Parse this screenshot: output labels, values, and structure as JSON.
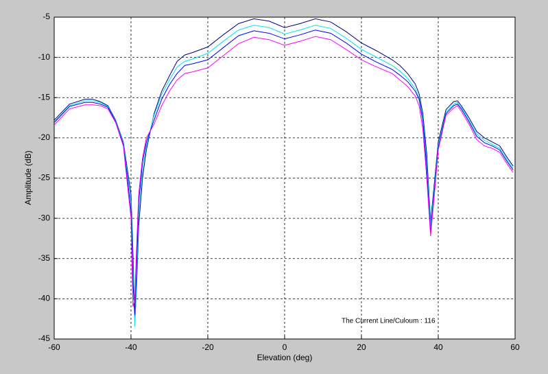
{
  "chart_data": {
    "type": "line",
    "xlabel": "Elevation (deg)",
    "ylabel": "Amplitude (dB)",
    "annotation": "The Current Line/Culoum : 116",
    "xlim": [
      -60,
      60
    ],
    "ylim": [
      -45,
      -5
    ],
    "xticks": [
      -60,
      -40,
      -20,
      0,
      20,
      40,
      60
    ],
    "yticks": [
      -45,
      -40,
      -35,
      -30,
      -25,
      -20,
      -15,
      -10,
      -5
    ],
    "grid": true,
    "x": [
      -60,
      -56,
      -52,
      -50,
      -48,
      -46,
      -44,
      -42,
      -40,
      -39.5,
      -39,
      -38.5,
      -38,
      -37,
      -36,
      -34,
      -32,
      -30,
      -28,
      -26,
      -24,
      -20,
      -16,
      -12,
      -8,
      -4,
      0,
      4,
      8,
      12,
      16,
      20,
      24,
      28,
      30,
      32,
      34,
      35,
      36,
      37,
      38,
      39,
      40,
      42,
      44,
      45,
      46,
      48,
      50,
      52,
      54,
      56,
      58,
      59.5
    ],
    "series": [
      {
        "color": "#000080",
        "values": [
          -17.8,
          -15.8,
          -15.2,
          -15.2,
          -15.5,
          -16,
          -17.8,
          -20.5,
          -27,
          -34,
          -43,
          -38,
          -31,
          -25,
          -21.5,
          -17,
          -14.2,
          -12.3,
          -10.5,
          -9.7,
          -9.4,
          -8.7,
          -7.2,
          -5.8,
          -5.2,
          -5.5,
          -6.3,
          -5.8,
          -5.2,
          -5.6,
          -6.8,
          -8.2,
          -9.2,
          -10.3,
          -11,
          -12,
          -13.3,
          -14.5,
          -17,
          -22,
          -30.5,
          -25.5,
          -20.5,
          -16.5,
          -15.5,
          -15.4,
          -16,
          -17.5,
          -19.2,
          -20,
          -20.5,
          -21,
          -22.5,
          -23.5
        ]
      },
      {
        "color": "#00e5e5",
        "values": [
          -18,
          -16,
          -15.4,
          -15.4,
          -15.6,
          -16.1,
          -17.9,
          -20.6,
          -28,
          -36,
          -43.5,
          -37,
          -29.5,
          -24,
          -21,
          -17.2,
          -14.6,
          -12.8,
          -11.2,
          -10.5,
          -10.2,
          -9.5,
          -8,
          -6.6,
          -6,
          -6.3,
          -7.1,
          -6.6,
          -6,
          -6.4,
          -7.6,
          -9,
          -10,
          -11,
          -11.7,
          -12.6,
          -13.9,
          -15,
          -17.5,
          -23,
          -31,
          -26,
          -21,
          -16.8,
          -15.8,
          -15.6,
          -16.2,
          -17.8,
          -19.5,
          -20.3,
          -20.8,
          -21.3,
          -22.8,
          -23.8
        ]
      },
      {
        "color": "#0000ff",
        "values": [
          -18.1,
          -16.1,
          -15.6,
          -15.6,
          -15.8,
          -16.2,
          -18,
          -20.8,
          -29,
          -38,
          -42,
          -35,
          -28,
          -23,
          -20.5,
          -17.8,
          -15.2,
          -13.4,
          -12,
          -11,
          -10.8,
          -10.3,
          -8.8,
          -7.3,
          -6.7,
          -7,
          -7.7,
          -7.2,
          -6.6,
          -7,
          -8.2,
          -9.6,
          -10.6,
          -11.5,
          -12.2,
          -13,
          -14.2,
          -15.2,
          -18,
          -24,
          -31.8,
          -26.5,
          -21.3,
          -17,
          -16,
          -15.8,
          -16.4,
          -18,
          -19.8,
          -20.6,
          -21,
          -21.5,
          -23,
          -24
        ]
      },
      {
        "color": "#ff00ff",
        "values": [
          -18.4,
          -16.4,
          -15.9,
          -15.9,
          -16,
          -16.4,
          -18.1,
          -21,
          -30,
          -41,
          -40,
          -33,
          -27,
          -22.5,
          -20,
          -18.3,
          -16,
          -14.2,
          -12.8,
          -12,
          -11.8,
          -11.3,
          -9.8,
          -8.3,
          -7.5,
          -7.8,
          -8.5,
          -8,
          -7.4,
          -7.8,
          -9,
          -10.3,
          -11.2,
          -12,
          -12.8,
          -13.6,
          -14.8,
          -16,
          -19,
          -25,
          -32.2,
          -27,
          -21.5,
          -17.2,
          -16.3,
          -16,
          -16.7,
          -18.3,
          -20.2,
          -21,
          -21.3,
          -21.8,
          -23.3,
          -24.3
        ]
      }
    ]
  }
}
